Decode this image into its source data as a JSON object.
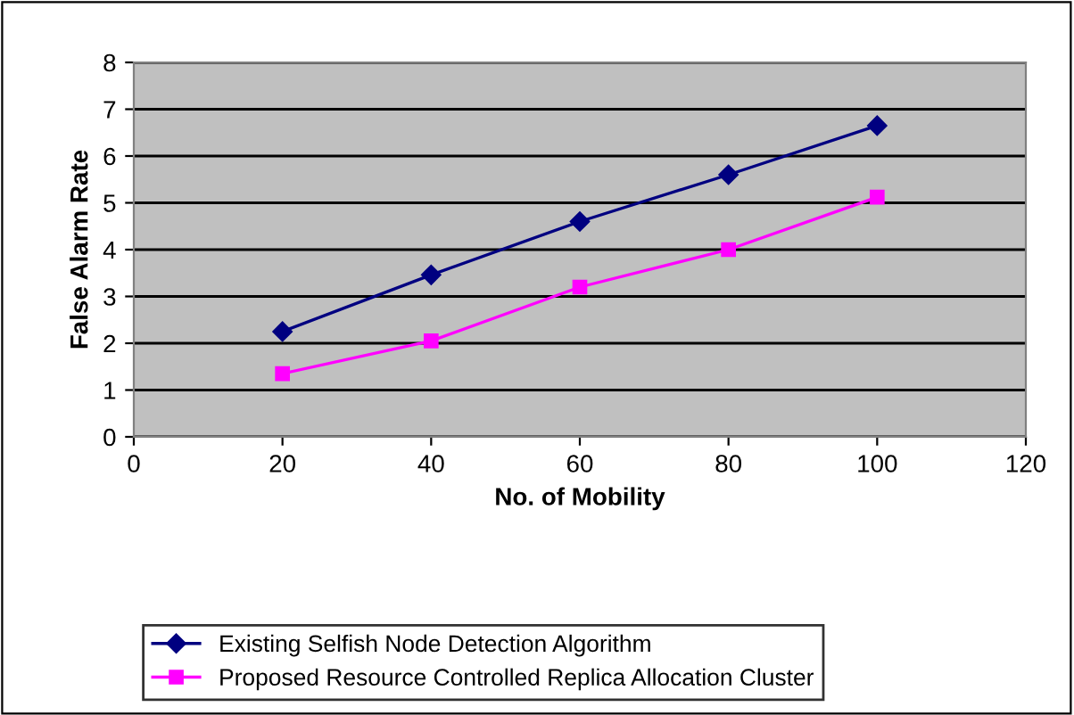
{
  "chart_data": {
    "type": "line",
    "xlabel": "No. of Mobility",
    "ylabel": "False Alarm Rate",
    "x": [
      20,
      40,
      60,
      80,
      100
    ],
    "series": [
      {
        "name": "Existing Selfish Node Detection Algorithm",
        "color": "#000080",
        "marker": "diamond",
        "values": [
          2.25,
          3.46,
          4.6,
          5.6,
          6.65
        ]
      },
      {
        "name": "Proposed Resource Controlled Replica Allocation Cluster",
        "color": "#ff00ff",
        "marker": "square",
        "values": [
          1.35,
          2.05,
          3.2,
          4.0,
          5.12
        ]
      }
    ],
    "xlim": [
      0,
      120
    ],
    "xticks": [
      0,
      20,
      40,
      60,
      80,
      100,
      120
    ],
    "ylim": [
      0,
      8
    ],
    "yticks": [
      0,
      1,
      2,
      3,
      4,
      5,
      6,
      7,
      8
    ],
    "grid": "y",
    "legend": "bottom"
  }
}
